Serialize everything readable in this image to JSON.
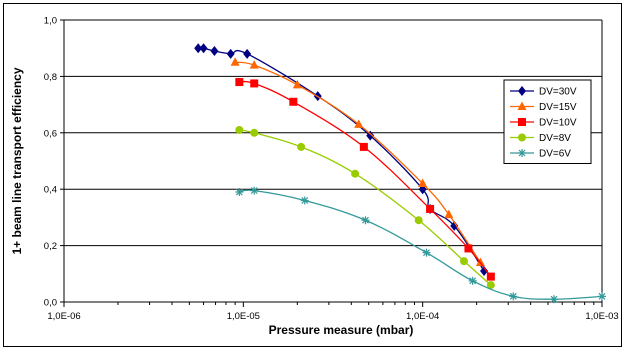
{
  "chart_data": {
    "type": "scatter",
    "title": "",
    "xlabel": "Pressure measure (mbar)",
    "ylabel": "1+ beam line transport efficiency",
    "xscale": "log",
    "xlim": [
      1e-06,
      0.001
    ],
    "ylim": [
      0,
      1
    ],
    "x_ticks": [
      1e-06,
      1e-05,
      0.0001,
      0.001
    ],
    "x_tick_labels": [
      "1,0E-06",
      "1,0E-05",
      "1,0E-04",
      "1,0E-03"
    ],
    "y_ticks": [
      0,
      0.2,
      0.4,
      0.6,
      0.8,
      1.0
    ],
    "y_tick_labels": [
      "0,0",
      "0,2",
      "0,4",
      "0,6",
      "0,8",
      "1,0"
    ],
    "grid": "horizontal",
    "legend_position": "right",
    "series": [
      {
        "name": "DV=30V",
        "color": "#000080",
        "marker": "diamond",
        "x": [
          5.6e-06,
          6e-06,
          6.9e-06,
          8.5e-06,
          1.05e-05,
          2.6e-05,
          5.1e-05,
          0.0001,
          0.00011,
          0.00015,
          0.00022
        ],
        "y": [
          0.9,
          0.9,
          0.89,
          0.88,
          0.88,
          0.73,
          0.59,
          0.4,
          0.33,
          0.27,
          0.11
        ]
      },
      {
        "name": "DV=15V",
        "color": "#FF6600",
        "marker": "triangle",
        "x": [
          9e-06,
          1.15e-05,
          2e-05,
          4.4e-05,
          0.0001,
          0.00014,
          0.00021
        ],
        "y": [
          0.85,
          0.84,
          0.77,
          0.63,
          0.42,
          0.31,
          0.14
        ]
      },
      {
        "name": "DV=10V",
        "color": "#FF0000",
        "marker": "square",
        "x": [
          9.5e-06,
          1.15e-05,
          1.9e-05,
          4.7e-05,
          0.00011,
          0.00018,
          0.00024
        ],
        "y": [
          0.78,
          0.775,
          0.71,
          0.55,
          0.33,
          0.19,
          0.09
        ]
      },
      {
        "name": "DV=8V",
        "color": "#99CC00",
        "marker": "circle",
        "x": [
          9.5e-06,
          1.15e-05,
          2.1e-05,
          4.2e-05,
          9.5e-05,
          0.00017,
          0.00024
        ],
        "y": [
          0.61,
          0.6,
          0.55,
          0.455,
          0.29,
          0.145,
          0.06
        ]
      },
      {
        "name": "DV=6V",
        "color": "#339999",
        "marker": "star",
        "x": [
          9.5e-06,
          1.15e-05,
          2.2e-05,
          4.8e-05,
          0.000105,
          0.00019,
          0.00032,
          0.00054,
          0.001
        ],
        "y": [
          0.39,
          0.395,
          0.36,
          0.29,
          0.175,
          0.075,
          0.02,
          0.01,
          0.02
        ]
      }
    ]
  }
}
